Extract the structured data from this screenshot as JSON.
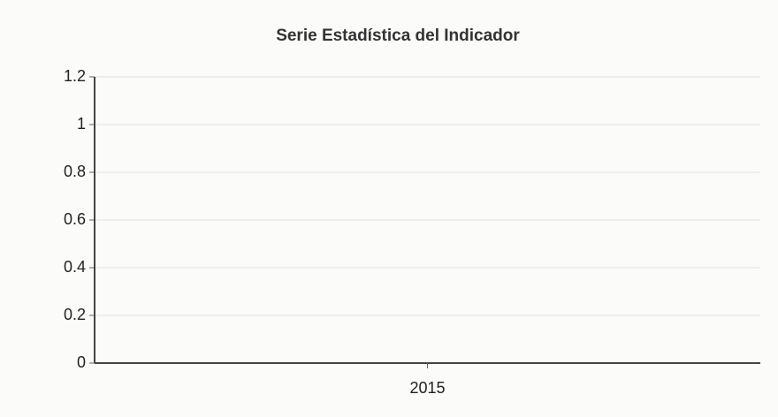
{
  "chart_data": {
    "type": "bar",
    "title": "Serie Estadística del Indicador",
    "categories": [
      "2015"
    ],
    "values": [
      0
    ],
    "ylim": [
      0,
      1.2
    ],
    "yticks": [
      0,
      0.2,
      0.4,
      0.6,
      0.8,
      1,
      1.2
    ],
    "grid": true
  }
}
